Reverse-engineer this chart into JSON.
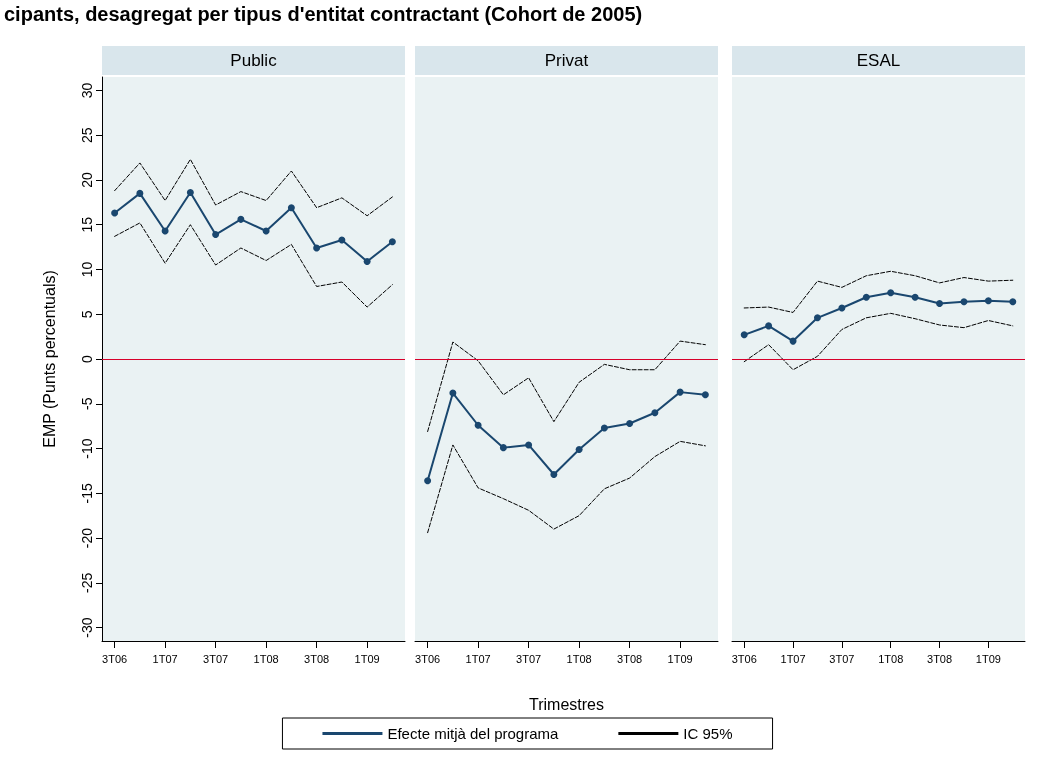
{
  "chart_data": [
    {
      "type": "line",
      "title": "Public",
      "ylabel": "EMP (Punts percentuals)",
      "annotations": [
        "cipants, desagregat per tipus d'entitat contractant (Cohort de 2005)"
      ],
      "categories": [
        "3T06",
        null,
        "1T07",
        null,
        "3T07",
        null,
        "1T08",
        null,
        "3T08",
        null,
        "1T09",
        null
      ],
      "series": [
        {
          "name": "Efecte mitjà del programa",
          "color": "#1a476f",
          "marker": "circle",
          "line_style": "solid",
          "values": [
            16.3,
            18.5,
            14.3,
            18.6,
            13.9,
            15.6,
            14.3,
            16.9,
            12.4,
            13.3,
            10.9,
            13.1
          ]
        },
        {
          "name": "IC 95%",
          "color": "#000000",
          "marker": "none",
          "line_style": "dashed",
          "values": [
            18.8,
            21.9,
            17.7,
            22.3,
            17.2,
            18.7,
            17.7,
            21.0,
            16.9,
            18.0,
            16.0,
            18.1
          ]
        },
        {
          "color": "#000000",
          "marker": "none",
          "line_style": "dashed",
          "values": [
            13.7,
            15.2,
            10.7,
            15.0,
            10.5,
            12.4,
            11.0,
            12.8,
            8.1,
            8.6,
            5.8,
            8.3
          ]
        }
      ],
      "ylim": [
        -31.5,
        31.5
      ],
      "yticks": [
        -30,
        -25,
        -20,
        -15,
        -10,
        -5,
        0,
        5,
        10,
        15,
        20,
        25,
        30
      ],
      "grid": false,
      "legend": "bottom",
      "ref_lines": [
        {
          "axis": "y",
          "value": 0,
          "color": "#d7002a"
        }
      ]
    },
    {
      "type": "line",
      "title": "Privat",
      "xlabel": "Trimestres",
      "categories": [
        "3T06",
        null,
        "1T07",
        null,
        "3T07",
        null,
        "1T08",
        null,
        "3T08",
        null,
        "1T09",
        null
      ],
      "series": [
        {
          "color": "#1a476f",
          "marker": "circle",
          "line_style": "solid",
          "values": [
            -13.6,
            -3.8,
            -7.4,
            -9.9,
            -9.6,
            -12.9,
            -10.1,
            -7.7,
            -7.2,
            -6.0,
            -3.7,
            -4.0
          ]
        },
        {
          "color": "#000000",
          "marker": "none",
          "line_style": "dashed",
          "values": [
            -8.1,
            1.9,
            -0.2,
            -4.0,
            -2.1,
            -7.0,
            -2.6,
            -0.6,
            -1.2,
            -1.2,
            2.0,
            1.6
          ]
        },
        {
          "color": "#000000",
          "marker": "none",
          "line_style": "dashed",
          "values": [
            -19.4,
            -9.6,
            -14.4,
            -15.6,
            -16.9,
            -19.0,
            -17.5,
            -14.5,
            -13.3,
            -10.9,
            -9.2,
            -9.7
          ]
        }
      ],
      "ylim": [
        -31.5,
        31.5
      ],
      "yticks": [
        -30,
        -25,
        -20,
        -15,
        -10,
        -5,
        0,
        5,
        10,
        15,
        20,
        25,
        30
      ],
      "grid": false,
      "tick_labels": "x",
      "ref_lines": [
        {
          "axis": "y",
          "value": 0,
          "color": "#d7002a"
        }
      ]
    },
    {
      "type": "line",
      "title": "ESAL",
      "categories": [
        "3T06",
        null,
        "1T07",
        null,
        "3T07",
        null,
        "1T08",
        null,
        "3T08",
        null,
        "1T09",
        null
      ],
      "series": [
        {
          "color": "#1a476f",
          "marker": "circle",
          "line_style": "solid",
          "values": [
            2.7,
            3.7,
            2.0,
            4.6,
            5.7,
            6.9,
            7.4,
            6.9,
            6.2,
            6.4,
            6.5,
            6.4
          ]
        },
        {
          "color": "#000000",
          "marker": "none",
          "line_style": "dashed",
          "values": [
            5.7,
            5.8,
            5.2,
            8.7,
            8.0,
            9.3,
            9.8,
            9.3,
            8.5,
            9.1,
            8.7,
            8.8
          ]
        },
        {
          "color": "#000000",
          "marker": "none",
          "line_style": "dashed",
          "values": [
            -0.3,
            1.6,
            -1.2,
            0.3,
            3.3,
            4.6,
            5.1,
            4.5,
            3.8,
            3.5,
            4.3,
            3.7
          ]
        }
      ],
      "ylim": [
        -31.5,
        31.5
      ],
      "yticks": [
        -30,
        -25,
        -20,
        -15,
        -10,
        -5,
        0,
        5,
        10,
        15,
        20,
        25,
        30
      ],
      "grid": false,
      "tick_labels": "x",
      "ref_lines": [
        {
          "axis": "y",
          "value": 0,
          "color": "#d7002a"
        }
      ]
    }
  ]
}
